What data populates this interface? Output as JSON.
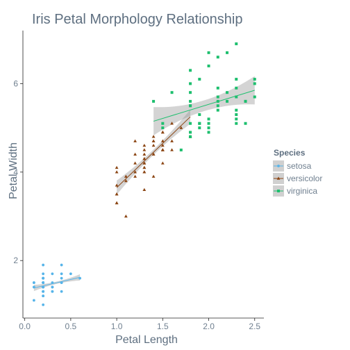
{
  "chart_data": {
    "type": "scatter",
    "title": "Iris Petal Morphology Relationship",
    "xlabel": "Petal Length",
    "ylabel": "Petal Width",
    "xlim": [
      -0.02,
      2.6
    ],
    "ylim": [
      0.7,
      7.2
    ],
    "xticks": [
      "0.0",
      "0.5",
      "1.0",
      "1.5",
      "2.0",
      "2.5"
    ],
    "yticks": [
      "2",
      "4",
      "6"
    ],
    "grid": false,
    "legend": {
      "title": "Species",
      "placement": "right",
      "entries": [
        "setosa",
        "versicolor",
        "virginica"
      ]
    },
    "series": [
      {
        "name": "setosa",
        "color": "#56b4e9",
        "marker": "circle",
        "points": [
          [
            0.2,
            1.4
          ],
          [
            0.2,
            1.4
          ],
          [
            0.2,
            1.3
          ],
          [
            0.2,
            1.5
          ],
          [
            0.2,
            1.4
          ],
          [
            0.4,
            1.7
          ],
          [
            0.3,
            1.4
          ],
          [
            0.2,
            1.5
          ],
          [
            0.2,
            1.4
          ],
          [
            0.1,
            1.5
          ],
          [
            0.2,
            1.5
          ],
          [
            0.2,
            1.6
          ],
          [
            0.1,
            1.4
          ],
          [
            0.1,
            1.1
          ],
          [
            0.2,
            1.2
          ],
          [
            0.4,
            1.5
          ],
          [
            0.4,
            1.3
          ],
          [
            0.3,
            1.4
          ],
          [
            0.3,
            1.7
          ],
          [
            0.3,
            1.5
          ],
          [
            0.2,
            1.7
          ],
          [
            0.4,
            1.5
          ],
          [
            0.2,
            1.0
          ],
          [
            0.5,
            1.7
          ],
          [
            0.2,
            1.9
          ],
          [
            0.2,
            1.6
          ],
          [
            0.4,
            1.6
          ],
          [
            0.2,
            1.5
          ],
          [
            0.2,
            1.4
          ],
          [
            0.2,
            1.6
          ],
          [
            0.2,
            1.6
          ],
          [
            0.4,
            1.5
          ],
          [
            0.1,
            1.5
          ],
          [
            0.2,
            1.4
          ],
          [
            0.2,
            1.5
          ],
          [
            0.2,
            1.2
          ],
          [
            0.2,
            1.3
          ],
          [
            0.1,
            1.4
          ],
          [
            0.2,
            1.3
          ],
          [
            0.2,
            1.5
          ],
          [
            0.3,
            1.3
          ],
          [
            0.3,
            1.3
          ],
          [
            0.2,
            1.3
          ],
          [
            0.6,
            1.6
          ],
          [
            0.4,
            1.9
          ],
          [
            0.3,
            1.4
          ],
          [
            0.2,
            1.6
          ],
          [
            0.2,
            1.4
          ],
          [
            0.2,
            1.5
          ],
          [
            0.2,
            1.4
          ]
        ],
        "fit": {
          "x": [
            0.1,
            0.6
          ],
          "y": [
            1.38,
            1.62
          ]
        }
      },
      {
        "name": "versicolor",
        "color": "#8b4513",
        "marker": "triangle",
        "points": [
          [
            1.4,
            4.7
          ],
          [
            1.5,
            4.5
          ],
          [
            1.5,
            4.9
          ],
          [
            1.3,
            4.0
          ],
          [
            1.5,
            4.6
          ],
          [
            1.3,
            4.5
          ],
          [
            1.6,
            4.7
          ],
          [
            1.0,
            3.3
          ],
          [
            1.3,
            4.6
          ],
          [
            1.4,
            3.9
          ],
          [
            1.0,
            3.5
          ],
          [
            1.5,
            4.2
          ],
          [
            1.0,
            4.0
          ],
          [
            1.4,
            4.7
          ],
          [
            1.3,
            3.6
          ],
          [
            1.4,
            4.4
          ],
          [
            1.5,
            4.5
          ],
          [
            1.0,
            4.1
          ],
          [
            1.5,
            4.5
          ],
          [
            1.1,
            3.9
          ],
          [
            1.8,
            4.8
          ],
          [
            1.3,
            4.0
          ],
          [
            1.5,
            4.9
          ],
          [
            1.2,
            4.7
          ],
          [
            1.3,
            4.3
          ],
          [
            1.4,
            4.4
          ],
          [
            1.4,
            4.8
          ],
          [
            1.7,
            5.0
          ],
          [
            1.5,
            4.5
          ],
          [
            1.0,
            3.5
          ],
          [
            1.1,
            3.8
          ],
          [
            1.0,
            3.7
          ],
          [
            1.2,
            3.9
          ],
          [
            1.6,
            5.1
          ],
          [
            1.5,
            4.5
          ],
          [
            1.6,
            4.5
          ],
          [
            1.5,
            4.7
          ],
          [
            1.3,
            4.4
          ],
          [
            1.3,
            4.1
          ],
          [
            1.3,
            4.0
          ],
          [
            1.2,
            4.4
          ],
          [
            1.4,
            4.6
          ],
          [
            1.2,
            4.0
          ],
          [
            1.0,
            3.3
          ],
          [
            1.3,
            4.2
          ],
          [
            1.2,
            4.2
          ],
          [
            1.3,
            4.2
          ],
          [
            1.3,
            4.3
          ],
          [
            1.1,
            3.0
          ],
          [
            1.3,
            4.1
          ]
        ],
        "fit": {
          "x": [
            1.0,
            1.8
          ],
          "y": [
            3.65,
            5.25
          ]
        }
      },
      {
        "name": "virginica",
        "color": "#1dbf6e",
        "marker": "square",
        "points": [
          [
            2.5,
            6.0
          ],
          [
            1.9,
            5.1
          ],
          [
            2.1,
            5.9
          ],
          [
            1.8,
            5.6
          ],
          [
            2.2,
            5.8
          ],
          [
            2.1,
            6.6
          ],
          [
            1.7,
            4.5
          ],
          [
            1.8,
            6.3
          ],
          [
            1.8,
            5.8
          ],
          [
            2.5,
            6.1
          ],
          [
            2.0,
            5.1
          ],
          [
            1.9,
            5.3
          ],
          [
            2.1,
            5.5
          ],
          [
            2.0,
            5.0
          ],
          [
            2.4,
            5.1
          ],
          [
            2.3,
            5.3
          ],
          [
            1.8,
            5.5
          ],
          [
            2.2,
            6.7
          ],
          [
            2.3,
            6.9
          ],
          [
            1.5,
            5.0
          ],
          [
            2.3,
            5.7
          ],
          [
            2.0,
            4.9
          ],
          [
            2.0,
            6.7
          ],
          [
            1.8,
            4.9
          ],
          [
            2.1,
            5.7
          ],
          [
            1.8,
            6.0
          ],
          [
            1.8,
            4.8
          ],
          [
            1.8,
            4.9
          ],
          [
            2.1,
            5.6
          ],
          [
            1.6,
            5.8
          ],
          [
            1.9,
            6.1
          ],
          [
            2.0,
            6.4
          ],
          [
            2.2,
            5.6
          ],
          [
            1.5,
            5.1
          ],
          [
            1.4,
            5.6
          ],
          [
            2.3,
            6.1
          ],
          [
            2.4,
            5.6
          ],
          [
            1.8,
            5.5
          ],
          [
            1.8,
            4.8
          ],
          [
            2.1,
            5.4
          ],
          [
            2.4,
            5.6
          ],
          [
            2.3,
            5.1
          ],
          [
            1.9,
            5.1
          ],
          [
            2.3,
            5.9
          ],
          [
            2.5,
            5.7
          ],
          [
            2.3,
            5.2
          ],
          [
            1.9,
            5.0
          ],
          [
            2.0,
            5.2
          ],
          [
            2.3,
            5.4
          ],
          [
            1.8,
            5.1
          ]
        ],
        "fit": {
          "x": [
            1.4,
            2.5
          ],
          "y": [
            5.15,
            5.85
          ]
        }
      }
    ]
  }
}
